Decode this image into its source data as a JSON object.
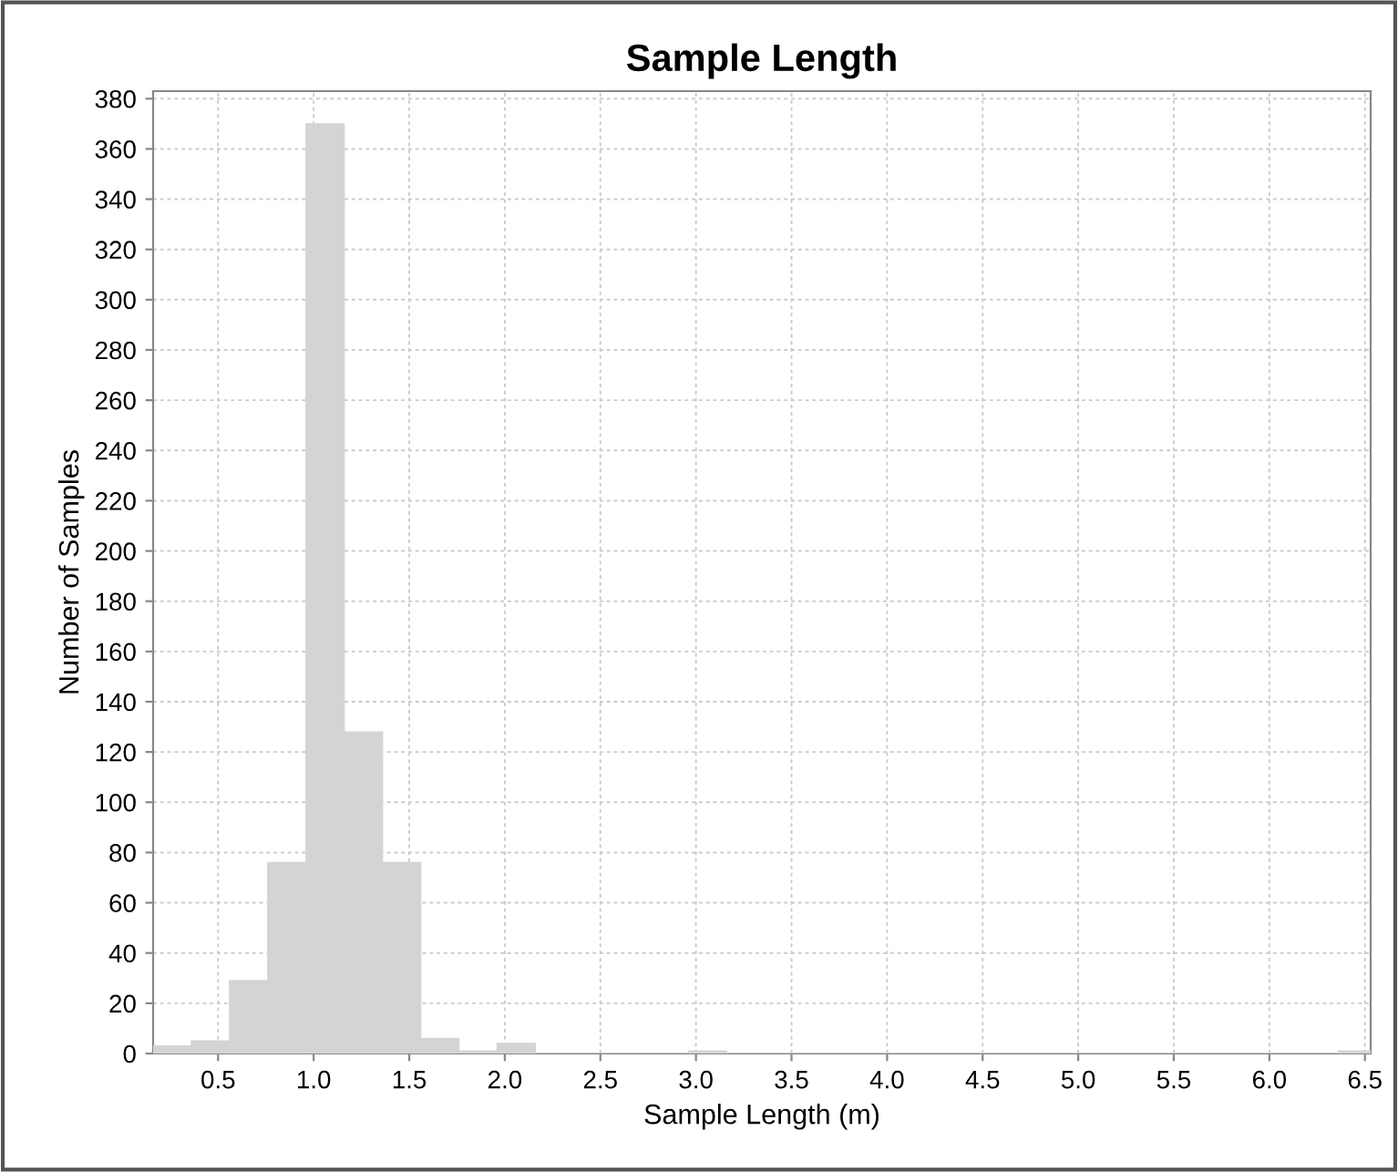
{
  "chart_data": {
    "type": "histogram",
    "title": "Sample Length",
    "xlabel": "Sample Length (m)",
    "ylabel": "Number of Samples",
    "bins": [
      0.16,
      0.36,
      0.56,
      0.76,
      0.96,
      1.16,
      1.36,
      1.56,
      1.76,
      1.96,
      2.16,
      2.36,
      2.56,
      2.76,
      2.96,
      3.16,
      3.36,
      3.56,
      3.76,
      3.96,
      4.16,
      4.36,
      4.56,
      4.76,
      4.96,
      5.16,
      5.36,
      5.56,
      5.76,
      5.96,
      6.16,
      6.36,
      6.56
    ],
    "values": [
      3,
      5,
      29,
      76,
      370,
      128,
      76,
      6,
      1,
      4,
      0,
      0,
      0,
      0,
      1,
      0,
      0,
      0,
      0,
      0,
      0,
      0,
      0,
      0,
      0,
      0,
      0,
      0,
      0,
      0,
      0,
      1
    ],
    "color": "#d4d4d4",
    "xlim": [
      0.16,
      6.53
    ],
    "ylim": [
      0,
      383
    ],
    "xticks": [
      {
        "value": 0.5,
        "label": "0.5"
      },
      {
        "value": 1.0,
        "label": "1.0"
      },
      {
        "value": 1.5,
        "label": "1.5"
      },
      {
        "value": 2.0,
        "label": "2.0"
      },
      {
        "value": 2.5,
        "label": "2.5"
      },
      {
        "value": 3.0,
        "label": "3.0"
      },
      {
        "value": 3.5,
        "label": "3.5"
      },
      {
        "value": 4.0,
        "label": "4.0"
      },
      {
        "value": 4.5,
        "label": "4.5"
      },
      {
        "value": 5.0,
        "label": "5.0"
      },
      {
        "value": 5.5,
        "label": "5.5"
      },
      {
        "value": 6.0,
        "label": "6.0"
      },
      {
        "value": 6.5,
        "label": "6.5"
      }
    ],
    "yticks": [
      0,
      20,
      40,
      60,
      80,
      100,
      120,
      140,
      160,
      180,
      200,
      220,
      240,
      260,
      280,
      300,
      320,
      340,
      360,
      380
    ],
    "grid": true
  }
}
